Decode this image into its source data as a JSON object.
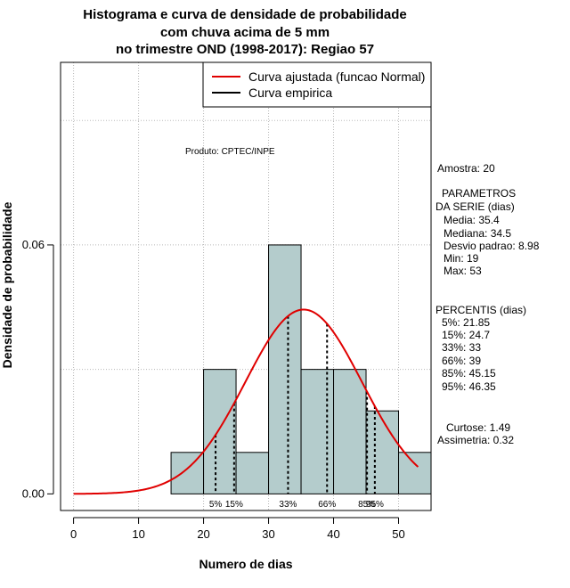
{
  "chart_data": {
    "type": "bar",
    "title_lines": [
      "Histograma e curva de densidade de probabilidade",
      "com chuva acima de 5 mm",
      "no trimestre OND (1998-2017): Regiao 57"
    ],
    "xlabel": "Numero de dias",
    "ylabel": "Densidade de probabilidade",
    "xlim": [
      -2,
      55
    ],
    "ylim": [
      -0.004,
      0.104
    ],
    "x_ticks": [
      0,
      10,
      20,
      30,
      40,
      50
    ],
    "x_tick_labels": [
      "0",
      "10",
      "20",
      "30",
      "40",
      "50"
    ],
    "y_ticks": [
      0.0,
      0.06
    ],
    "y_tick_labels": [
      "0.00",
      "0.06"
    ],
    "grid": true,
    "grid_x": [
      0,
      10,
      20,
      30,
      40,
      50
    ],
    "grid_y": [
      0.03,
      0.06,
      0.09
    ],
    "bins": [
      {
        "start": 15,
        "end": 20,
        "density": 0.01
      },
      {
        "start": 20,
        "end": 25,
        "density": 0.03
      },
      {
        "start": 25,
        "end": 30,
        "density": 0.01
      },
      {
        "start": 30,
        "end": 35,
        "density": 0.06
      },
      {
        "start": 35,
        "end": 40,
        "density": 0.03
      },
      {
        "start": 40,
        "end": 45,
        "density": 0.03
      },
      {
        "start": 45,
        "end": 50,
        "density": 0.02
      },
      {
        "start": 50,
        "end": 55,
        "density": 0.01
      }
    ],
    "bar_color": "#b4cccc",
    "normal_fit": {
      "mean": 35.4,
      "sd": 8.98,
      "x_from": 0,
      "x_to": 53,
      "color": "#e00000"
    },
    "percentile_lines": [
      {
        "x": 21.85,
        "label": "5%"
      },
      {
        "x": 24.7,
        "label": "15%"
      },
      {
        "x": 33,
        "label": "33%"
      },
      {
        "x": 39,
        "label": "66%"
      },
      {
        "x": 45.15,
        "label": "85%"
      },
      {
        "x": 46.35,
        "label": "95%"
      }
    ],
    "legend": {
      "placement": "top-right",
      "entries": [
        {
          "label": "Curva ajustada (funcao Normal)",
          "color": "#e00000"
        },
        {
          "label": "Curva empirica",
          "color": "#000000"
        }
      ]
    },
    "annotation": "Produto: CPTEC/INPE"
  },
  "side_panel": {
    "lines": [
      "Amostra: 20",
      "PARAMETROS",
      "DA SERIE (dias)",
      "Media: 35.4",
      "Mediana: 34.5",
      "Desvio padrao: 8.98",
      "Min: 19",
      "Max: 53",
      "PERCENTIS (dias)",
      "5%: 21.85",
      "15%: 24.7",
      "33%: 33",
      "66%: 39",
      "85%: 45.15",
      "95%: 46.35",
      "Curtose: 1.49",
      "Assimetria: 0.32"
    ]
  }
}
